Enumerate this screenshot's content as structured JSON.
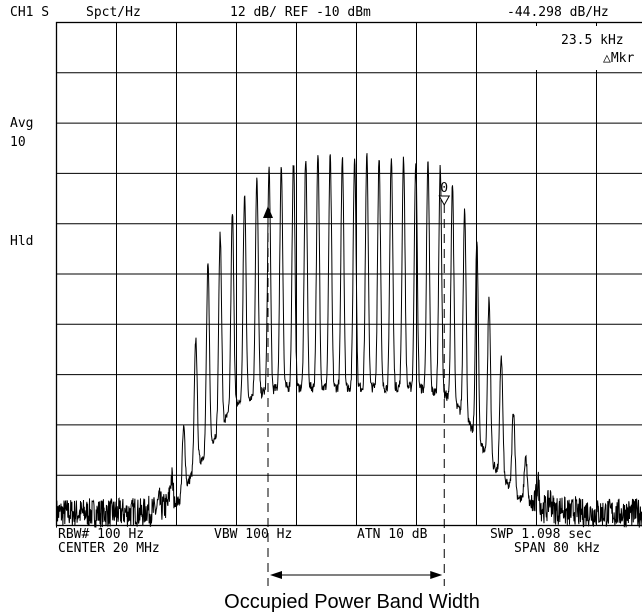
{
  "header": {
    "channel": "CH1 S",
    "units": "Spct/Hz",
    "scale": "12 dB/ REF -10 dBm",
    "marker_value": "-44.298 dB/Hz"
  },
  "marker_box": {
    "freq": "23.5 kHz",
    "label": "△Mkr"
  },
  "side_labels": {
    "avg": "Avg",
    "avg_count": "10",
    "hold": "Hld"
  },
  "footer": {
    "rbw": "RBW# 100 Hz",
    "vbw": "VBW 100 Hz",
    "atn": "ATN 10 dB",
    "swp": "SWP 1.098 sec",
    "center": "CENTER 20 MHz",
    "span": "SPAN 80 kHz"
  },
  "caption": "Occupied Power Band Width",
  "chart_data": {
    "type": "line",
    "title": "",
    "xlabel": "",
    "ylabel": "",
    "x_unit": "kHz offset from center",
    "xlim": [
      -40,
      40
    ],
    "ylim": [
      -130,
      -10
    ],
    "grid": true,
    "reference_level_dbm": -10,
    "db_per_division": 12,
    "center_mhz": 20,
    "span_khz": 80,
    "markers": [
      {
        "name": "obw-lower",
        "x": -11.8
      },
      {
        "name": "obw-upper",
        "x": 11.7
      }
    ],
    "series": [
      {
        "x": [
          -40,
          -36,
          -32,
          -28,
          -26,
          -25,
          -23.5,
          -22,
          -20,
          -18,
          -16,
          -14,
          -12,
          -10,
          -8,
          -6,
          -4,
          -2,
          0,
          2,
          4,
          6,
          8,
          10,
          12,
          14,
          16,
          18,
          20,
          22,
          23.5,
          25,
          26,
          28,
          32,
          36,
          40
        ],
        "peaks": [
          -127,
          -127,
          -127,
          -126,
          -124,
          -120,
          -113,
          -92,
          -69,
          -60,
          -54,
          -49,
          -45,
          -44,
          -43,
          -42,
          -42,
          -42,
          -42,
          -42,
          -42,
          -42,
          -43,
          -44,
          -46,
          -52,
          -62,
          -79,
          -95,
          -111,
          -118,
          -122,
          -124,
          -126,
          -127,
          -127,
          -127
        ],
        "floor": [
          -127,
          -127,
          -127,
          -127,
          -126,
          -125,
          -124,
          -118,
          -112,
          -106,
          -101,
          -99,
          -98,
          -97,
          -97,
          -97,
          -97,
          -97,
          -97,
          -97,
          -97,
          -97,
          -97,
          -98,
          -99,
          -103,
          -109,
          -115,
          -120,
          -124,
          -125,
          -126,
          -126,
          -127,
          -127,
          -127,
          -127
        ]
      }
    ]
  }
}
